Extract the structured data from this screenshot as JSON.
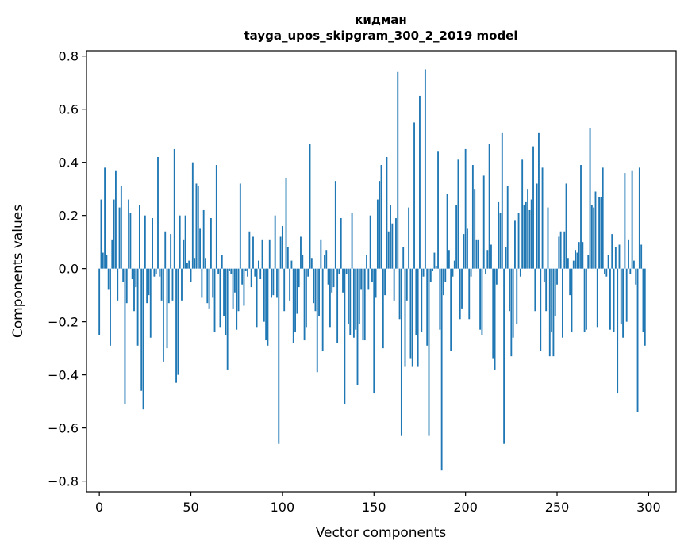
{
  "chart_data": {
    "type": "bar",
    "title": "кидман",
    "subtitle": "tayga_upos_skipgram_300_2_2019 model",
    "xlabel": "Vector components",
    "ylabel": "Components values",
    "xlim": [
      -7,
      315
    ],
    "ylim": [
      -0.84,
      0.82
    ],
    "xticks": [
      0,
      50,
      100,
      150,
      200,
      250,
      300
    ],
    "xtick_labels": [
      "0",
      "50",
      "100",
      "150",
      "200",
      "250",
      "300"
    ],
    "yticks": [
      -0.8,
      -0.6,
      -0.4,
      -0.2,
      0.0,
      0.2,
      0.4,
      0.6,
      0.8
    ],
    "ytick_labels": [
      "−0.8",
      "−0.6",
      "−0.4",
      "−0.2",
      "0.0",
      "0.2",
      "0.4",
      "0.6",
      "0.8"
    ],
    "bar_color": "#1f77b4",
    "grid": false,
    "values": [
      -0.25,
      0.26,
      0.06,
      0.38,
      0.05,
      -0.08,
      -0.29,
      0.11,
      0.26,
      0.37,
      -0.12,
      0.23,
      0.31,
      -0.05,
      -0.51,
      -0.13,
      0.26,
      0.21,
      -0.04,
      -0.16,
      -0.07,
      -0.29,
      0.24,
      -0.46,
      -0.53,
      0.2,
      -0.13,
      -0.1,
      -0.26,
      0.19,
      -0.03,
      -0.02,
      0.42,
      -0.03,
      -0.12,
      -0.35,
      0.14,
      -0.3,
      -0.13,
      0.13,
      -0.12,
      0.45,
      -0.43,
      -0.4,
      0.2,
      -0.12,
      0.11,
      0.2,
      0.02,
      0.03,
      -0.05,
      0.4,
      0.04,
      0.32,
      0.31,
      0.15,
      -0.11,
      0.22,
      0.04,
      -0.13,
      -0.15,
      0.19,
      -0.11,
      -0.24,
      0.39,
      -0.02,
      -0.22,
      0.05,
      -0.18,
      -0.25,
      -0.38,
      -0.01,
      -0.02,
      -0.15,
      -0.09,
      -0.23,
      -0.16,
      0.32,
      -0.06,
      -0.14,
      -0.01,
      -0.03,
      0.14,
      -0.07,
      0.12,
      -0.03,
      -0.22,
      0.03,
      -0.04,
      0.11,
      -0.2,
      -0.27,
      -0.29,
      0.11,
      -0.11,
      -0.1,
      0.2,
      -0.11,
      -0.66,
      0.12,
      0.16,
      -0.16,
      0.34,
      0.08,
      -0.12,
      0.03,
      -0.28,
      -0.24,
      -0.17,
      -0.07,
      0.12,
      0.05,
      -0.27,
      -0.22,
      -0.03,
      0.47,
      0.04,
      -0.13,
      -0.16,
      -0.39,
      -0.18,
      0.11,
      -0.31,
      0.05,
      0.07,
      -0.06,
      -0.22,
      -0.09,
      -0.07,
      0.33,
      -0.28,
      -0.02,
      0.19,
      -0.09,
      -0.51,
      -0.02,
      -0.21,
      -0.25,
      0.21,
      -0.26,
      -0.23,
      -0.44,
      -0.21,
      -0.08,
      -0.27,
      -0.27,
      0.05,
      -0.08,
      0.2,
      -0.05,
      -0.47,
      -0.11,
      0.26,
      0.33,
      0.39,
      -0.3,
      -0.1,
      0.42,
      0.14,
      0.24,
      0.17,
      -0.12,
      0.19,
      0.74,
      -0.19,
      -0.63,
      0.08,
      -0.37,
      -0.12,
      0.23,
      -0.34,
      -0.37,
      0.55,
      -0.25,
      -0.37,
      0.65,
      -0.24,
      -0.03,
      0.75,
      -0.29,
      -0.63,
      -0.05,
      -0.01,
      0.06,
      0.01,
      0.44,
      -0.23,
      -0.76,
      -0.1,
      -0.05,
      0.28,
      0.07,
      -0.31,
      -0.03,
      0.03,
      0.24,
      0.41,
      -0.19,
      -0.15,
      0.13,
      0.45,
      0.15,
      -0.19,
      -0.03,
      0.39,
      0.3,
      0.11,
      0.11,
      -0.23,
      -0.25,
      0.35,
      -0.02,
      0.07,
      0.47,
      0.09,
      -0.34,
      -0.38,
      -0.06,
      0.25,
      0.21,
      0.51,
      -0.66,
      0.08,
      0.31,
      -0.16,
      -0.33,
      -0.26,
      0.18,
      -0.21,
      0.21,
      -0.03,
      0.41,
      0.24,
      0.25,
      0.3,
      0.22,
      0.26,
      0.46,
      -0.16,
      0.32,
      0.51,
      -0.31,
      0.38,
      -0.05,
      -0.16,
      0.23,
      -0.33,
      -0.24,
      -0.33,
      -0.18,
      -0.06,
      0.12,
      0.14,
      -0.26,
      0.14,
      0.32,
      0.04,
      -0.1,
      -0.24,
      0.03,
      0.07,
      0.06,
      0.1,
      0.39,
      0.1,
      -0.24,
      -0.23,
      0.05,
      0.53,
      0.24,
      0.23,
      0.29,
      -0.22,
      0.27,
      0.27,
      0.38,
      -0.02,
      -0.03,
      0.05,
      -0.23,
      0.13,
      -0.24,
      0.08,
      -0.47,
      0.09,
      -0.21,
      -0.26,
      0.36,
      -0.2,
      0.11,
      -0.02,
      0.37,
      0.03,
      -0.06,
      -0.54,
      0.38,
      0.09,
      -0.24,
      -0.29
    ]
  }
}
